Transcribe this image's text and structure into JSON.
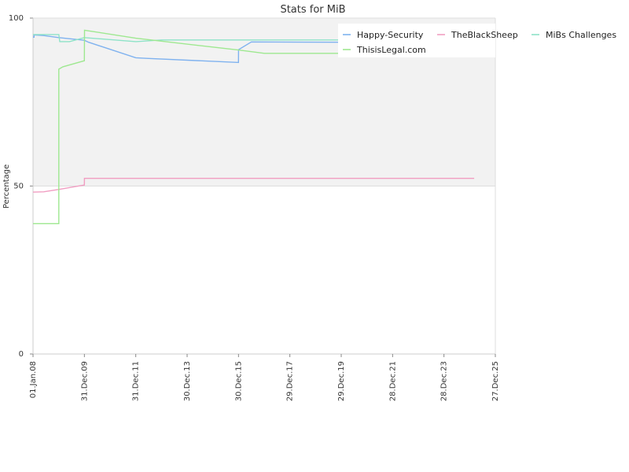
{
  "chart_data": {
    "type": "line",
    "title": "Stats for MiB",
    "xlabel": "",
    "ylabel": "Percentage",
    "ylim": [
      0,
      100
    ],
    "yticks": [
      0,
      50,
      100
    ],
    "xlim": [
      "2008-01-01",
      "2025-12-27"
    ],
    "xtick_labels": [
      "01.Jan.08",
      "31.Dec.09",
      "31.Dec.11",
      "30.Dec.13",
      "30.Dec.15",
      "29.Dec.17",
      "29.Dec.19",
      "28.Dec.21",
      "28.Dec.23",
      "27.Dec.25"
    ],
    "xtick_dates": [
      "2008-01-01",
      "2009-12-31",
      "2011-12-31",
      "2013-12-30",
      "2015-12-30",
      "2017-12-29",
      "2019-12-29",
      "2021-12-28",
      "2023-12-28",
      "2025-12-27"
    ],
    "shaded_band": [
      50,
      100
    ],
    "legend_position": "top-right",
    "series": [
      {
        "name": "Happy-Security",
        "color": "#7fb2ef",
        "points": [
          [
            "2008-01-01",
            94.3
          ],
          [
            "2008-01-15",
            94.3
          ],
          [
            "2008-01-16",
            95.0
          ],
          [
            "2008-06-01",
            94.8
          ],
          [
            "2009-01-01",
            94.2
          ],
          [
            "2009-12-31",
            93.4
          ],
          [
            "2010-03-01",
            92.8
          ],
          [
            "2011-12-31",
            88.2
          ],
          [
            "2012-06-01",
            88.0
          ],
          [
            "2015-12-30",
            86.8
          ],
          [
            "2015-12-31",
            90.6
          ],
          [
            "2016-06-30",
            92.9
          ],
          [
            "2019-12-31",
            92.8
          ]
        ]
      },
      {
        "name": "TheBlackSheep",
        "color": "#f19ec2",
        "points": [
          [
            "2008-01-01",
            48.2
          ],
          [
            "2008-06-01",
            48.3
          ],
          [
            "2009-01-01",
            49.0
          ],
          [
            "2009-12-31",
            50.3
          ],
          [
            "2010-01-01",
            52.3
          ],
          [
            "2016-01-01",
            52.3
          ],
          [
            "2020-01-01",
            52.3
          ],
          [
            "2025-03-01",
            52.3
          ]
        ]
      },
      {
        "name": "MiBs Challenges",
        "color": "#8ee3c8",
        "points": [
          [
            "2008-01-01",
            95.1
          ],
          [
            "2009-01-01",
            95.1
          ],
          [
            "2009-01-15",
            93.0
          ],
          [
            "2009-06-01",
            93.0
          ],
          [
            "2010-01-01",
            94.2
          ],
          [
            "2012-01-01",
            93.0
          ],
          [
            "2013-01-01",
            93.5
          ],
          [
            "2015-12-31",
            93.5
          ],
          [
            "2019-12-31",
            93.5
          ]
        ]
      },
      {
        "name": "ThisisLegal.com",
        "color": "#9ee890",
        "points": [
          [
            "2008-01-01",
            38.8
          ],
          [
            "2009-01-01",
            38.8
          ],
          [
            "2009-01-02",
            84.8
          ],
          [
            "2009-03-01",
            85.5
          ],
          [
            "2009-12-31",
            87.3
          ],
          [
            "2010-01-01",
            92.0
          ],
          [
            "2010-01-02",
            96.4
          ],
          [
            "2012-01-01",
            94.0
          ],
          [
            "2015-12-31",
            90.5
          ],
          [
            "2017-01-01",
            89.5
          ],
          [
            "2019-12-31",
            89.5
          ]
        ]
      }
    ]
  }
}
